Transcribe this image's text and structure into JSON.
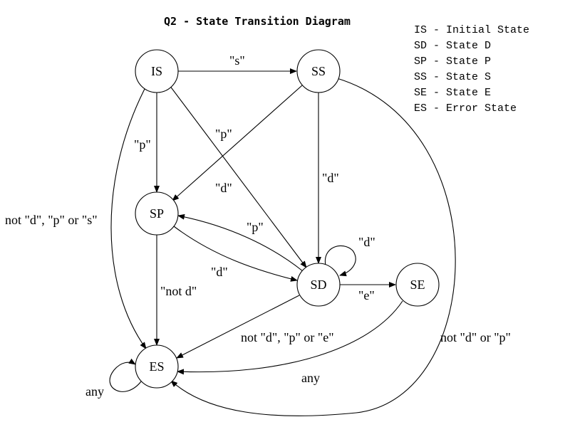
{
  "title": "Q2 - State Transition Diagram",
  "legend": [
    "IS - Initial State",
    "SD - State D",
    "SP - State P",
    "SS - State S",
    "SE - State E",
    "ES - Error State"
  ],
  "states": {
    "IS": "IS",
    "SS": "SS",
    "SP": "SP",
    "SD": "SD",
    "SE": "SE",
    "ES": "ES"
  },
  "transitions": {
    "is_ss": "\"s\"",
    "is_sp": "\"p\"",
    "is_sd": "\"d\"",
    "ss_sp": "\"p\"",
    "ss_sd": "\"d\"",
    "sp_sd": "\"d\"",
    "sd_sp": "\"p\"",
    "sd_self": "\"d\"",
    "sd_se": "\"e\"",
    "sp_es": "\"not d\"",
    "is_es": "not \"d\", \"p\" or \"s\"",
    "sd_es": "not \"d\", \"p\" or \"e\"",
    "ss_es": "not \"d\" or \"p\"",
    "se_es": "any",
    "es_self": "any"
  }
}
